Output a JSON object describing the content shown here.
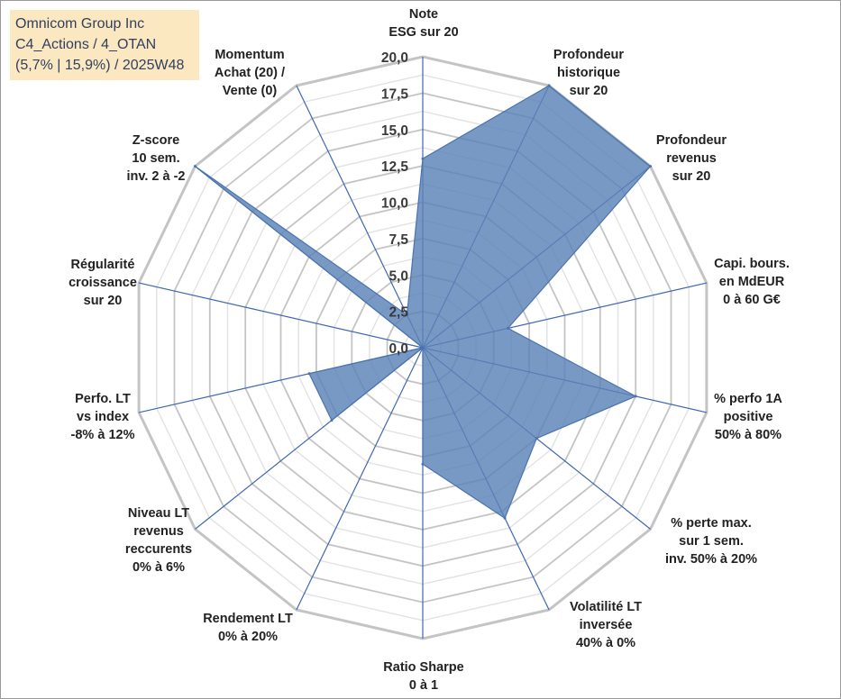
{
  "title_box": {
    "line1": "Omnicom Group Inc",
    "line2": "C4_Actions / 4_OTAN",
    "line3": "(5,7% | 15,9%) / 2025W48"
  },
  "chart_data": {
    "type": "radar",
    "title": "Omnicom Group Inc",
    "rmax": 20,
    "grid_step": 1.25,
    "tick_labels": [
      "0,0",
      "2,5",
      "5,0",
      "7,5",
      "10,0",
      "12,5",
      "15,0",
      "17,5",
      "20,0"
    ],
    "axes": [
      [
        "Note",
        "ESG sur 20"
      ],
      [
        "Profondeur",
        "historique",
        "sur 20"
      ],
      [
        "Profondeur",
        "revenus",
        "sur 20"
      ],
      [
        "Capi. bours.",
        "en MdEUR",
        "0 à 60 G€"
      ],
      [
        "% perfo 1A",
        "positive",
        "50% à 80%"
      ],
      [
        "% perte max.",
        "sur 1 sem.",
        "inv. 50% à 20%"
      ],
      [
        "Volatilité LT",
        "inversée",
        "40% à 0%"
      ],
      [
        "Ratio Sharpe",
        "0 à 1"
      ],
      [
        "Rendement LT",
        "0% à 20%"
      ],
      [
        "Niveau LT",
        "revenus",
        "reccurents",
        "0% à 6%"
      ],
      [
        "Perfo. LT",
        "vs index",
        "-8% à 12%"
      ],
      [
        "Régularité",
        "croissance",
        "sur 20"
      ],
      [
        "Z-score",
        "10 sem.",
        "inv. 2 à -2"
      ],
      [
        "Momentum",
        "Achat (20) /",
        "Vente (0)"
      ]
    ],
    "series": [
      {
        "name": "Omnicom Group Inc",
        "values": [
          13,
          20,
          20,
          6,
          15,
          10,
          13,
          8,
          0,
          8,
          8,
          0,
          20,
          2.5
        ],
        "color": "#5b83b8"
      }
    ]
  }
}
